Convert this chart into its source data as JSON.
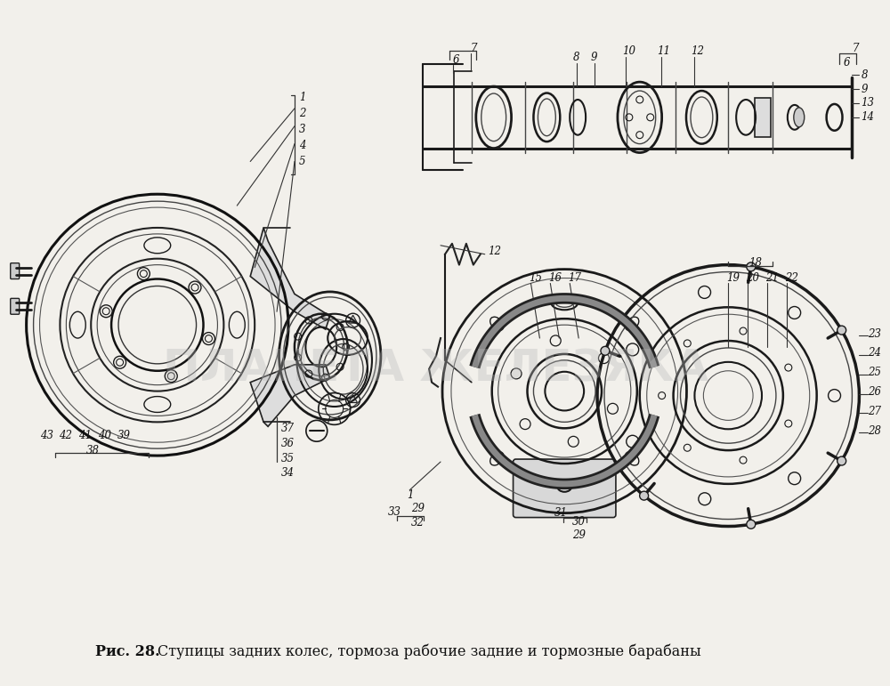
{
  "bg_color": "#f2f0eb",
  "caption_bold": "Рис. 28.",
  "caption_rest": " Ступицы задних колес, тормоза рабочие задние и тормозные барабаны",
  "caption_fontsize": 11.5,
  "watermark": "ПЛАНЕТА ЖЕЛЕЗЯКА",
  "watermark_color": "#b8b8b8",
  "watermark_alpha": 0.35,
  "watermark_fontsize": 36,
  "fig_width": 10.0,
  "fig_height": 7.71,
  "dpi": 100
}
